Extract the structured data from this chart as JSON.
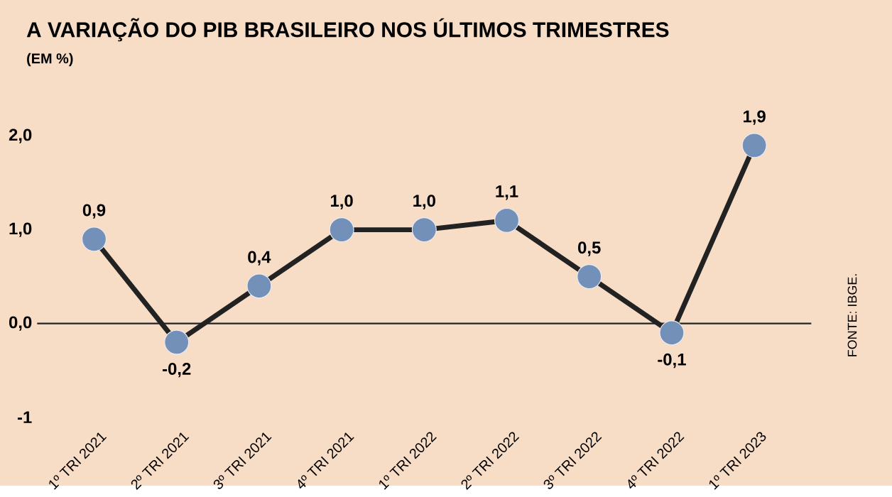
{
  "chart_data": {
    "type": "line",
    "title": "A VARIAÇÃO DO PIB BRASILEIRO NOS ÚLTIMOS TRIMESTRES",
    "subtitle": "(EM %)",
    "categories": [
      "1º TRI 2021",
      "2º TRI 2021",
      "3º TRI 2021",
      "4º TRI 2021",
      "1º TRI 2022",
      "2º TRI 2022",
      "3º TRI 2022",
      "4º TRI 2022",
      "1º TRI 2023"
    ],
    "series": [
      {
        "color": "#222222",
        "values": [
          0.9,
          -0.2,
          0.4,
          1.0,
          1.0,
          1.1,
          0.5,
          -0.1,
          1.9
        ],
        "value_labels": [
          "0,9",
          "-0,2",
          "0,4",
          "1,0",
          "1,0",
          "1,1",
          "0,5",
          "-0,1",
          "1,9"
        ]
      }
    ],
    "ylim": [
      -1,
      2
    ],
    "yticks": [
      {
        "value": -1,
        "label": "-1"
      },
      {
        "value": 0,
        "label": "0,0"
      },
      {
        "value": 1,
        "label": "1,0"
      },
      {
        "value": 2,
        "label": "2,0"
      }
    ],
    "ref_lines": [
      {
        "axis": "y",
        "value": 0,
        "color": "#222222"
      }
    ],
    "marker": "circle",
    "line_style": "solid",
    "annotations": [
      "FONTE: IBGE."
    ]
  }
}
